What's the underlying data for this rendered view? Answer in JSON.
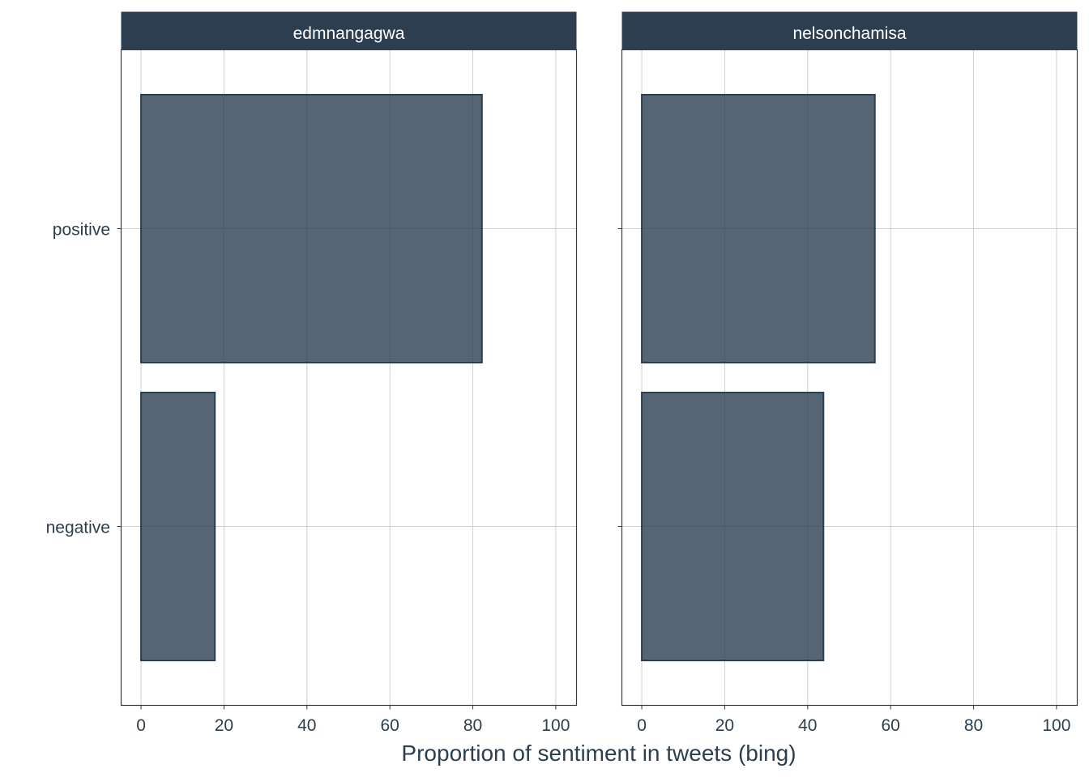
{
  "chart_data": {
    "type": "bar",
    "orientation": "horizontal",
    "facets": [
      "edmnangagwa",
      "nelsonchamisa"
    ],
    "categories": [
      "positive",
      "negative"
    ],
    "series": [
      {
        "facet": "edmnangagwa",
        "values": [
          82.2,
          17.8
        ]
      },
      {
        "facet": "nelsonchamisa",
        "values": [
          56.2,
          43.8
        ]
      }
    ],
    "xlabel": "Proportion of sentiment in tweets (bing)",
    "ylabel": "",
    "xlim": [
      -4.8,
      105
    ],
    "xticks": [
      0,
      20,
      40,
      60,
      80,
      100
    ],
    "grid": true,
    "legend": "none",
    "colors": {
      "bar_fill": "#2c3e50",
      "bar_fill_opacity": 0.8,
      "strip": "#2c3e50",
      "text": "#2c3e50"
    }
  }
}
